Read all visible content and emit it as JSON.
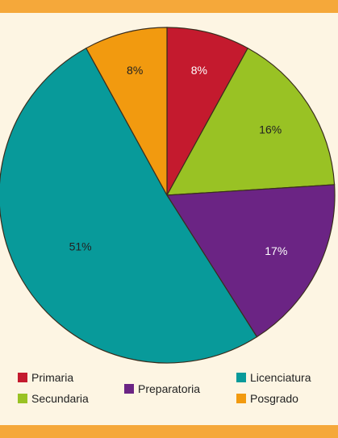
{
  "chart_data": {
    "type": "pie",
    "title": "",
    "slices": [
      {
        "name": "Primaria",
        "value": 8,
        "label": "8%",
        "color": "#c41a2e",
        "label_color": "#ffffff"
      },
      {
        "name": "Secundaria",
        "value": 16,
        "label": "16%",
        "color": "#99c224",
        "label_color": "#222222"
      },
      {
        "name": "Preparatoria",
        "value": 17,
        "label": "17%",
        "color": "#6b2484",
        "label_color": "#ffffff"
      },
      {
        "name": "Licenciatura",
        "value": 51,
        "label": "51%",
        "color": "#089a9a",
        "label_color": "#222222"
      },
      {
        "name": "Posgrado",
        "value": 8,
        "label": "8%",
        "color": "#f29a0f",
        "label_color": "#222222"
      }
    ],
    "start_angle": "12 o'clock",
    "direction": "clockwise",
    "legend_position": "bottom"
  },
  "colors": {
    "background": "#fdf5e3",
    "band": "#f5a83a",
    "slice_edge": "#3a2d1d"
  }
}
